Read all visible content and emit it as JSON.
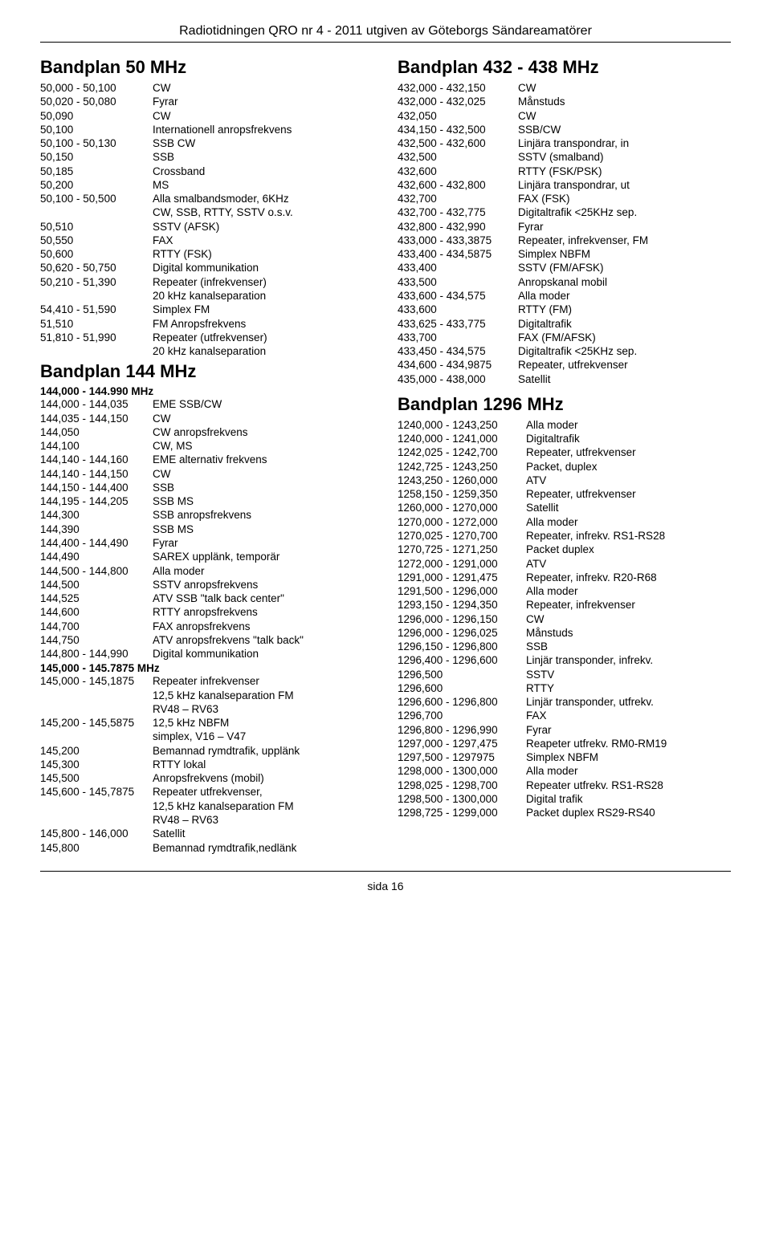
{
  "header": "Radiotidningen QRO nr 4 - 2011 utgiven av Göteborgs Sändareamatörer",
  "footer": "sida 16",
  "left": {
    "s50": {
      "title": "Bandplan 50 MHz",
      "rows": [
        [
          "50,000 - 50,100",
          "CW"
        ],
        [
          "50,020 - 50,080",
          "Fyrar"
        ],
        [
          "50,090",
          "CW"
        ],
        [
          "50,100",
          "Internationell anropsfrekvens"
        ],
        [
          "50,100 - 50,130",
          "SSB CW"
        ],
        [
          "50,150",
          "SSB"
        ],
        [
          "50,185",
          "Crossband"
        ],
        [
          "50,200",
          "MS"
        ],
        [
          "50,100 - 50,500",
          "Alla smalbandsmoder, 6KHz"
        ],
        [
          "",
          "CW, SSB, RTTY, SSTV o.s.v."
        ],
        [
          "50,510",
          "SSTV (AFSK)"
        ],
        [
          "50,550",
          "FAX"
        ],
        [
          "50,600",
          "RTTY (FSK)"
        ],
        [
          "50,620 - 50,750",
          "Digital kommunikation"
        ],
        [
          "50,210 - 51,390",
          "Repeater (infrekvenser)"
        ],
        [
          "",
          "20 kHz kanalseparation"
        ],
        [
          "54,410 - 51,590",
          "Simplex FM"
        ],
        [
          "51,510",
          "FM Anropsfrekvens"
        ],
        [
          "51,810 - 51,990",
          "Repeater (utfrekvenser)"
        ],
        [
          "",
          "20 kHz kanalseparation"
        ]
      ]
    },
    "s144": {
      "title": "Bandplan 144 MHz",
      "sub1": "144,000 - 144.990 MHz",
      "rows1": [
        [
          "144,000 - 144,035",
          "EME SSB/CW"
        ],
        [
          "144,035 - 144,150",
          "CW"
        ],
        [
          "144,050",
          "CW anropsfrekvens"
        ],
        [
          "144,100",
          "CW, MS"
        ],
        [
          "144,140 - 144,160",
          "EME alternativ frekvens"
        ],
        [
          "144,140 - 144,150",
          "CW"
        ],
        [
          "144,150 - 144,400",
          "SSB"
        ],
        [
          "144,195 - 144,205",
          "SSB MS"
        ],
        [
          "144,300",
          "SSB anropsfrekvens"
        ],
        [
          "144,390",
          "SSB MS"
        ],
        [
          "144,400 - 144,490",
          "Fyrar"
        ],
        [
          "144,490",
          "SAREX upplänk, temporär"
        ],
        [
          "144,500 - 144,800",
          "Alla moder"
        ],
        [
          "144,500",
          "SSTV anropsfrekvens"
        ],
        [
          "144,525",
          "ATV SSB \"talk back center\""
        ],
        [
          "144,600",
          "RTTY anropsfrekvens"
        ],
        [
          "144,700",
          "FAX anropsfrekvens"
        ],
        [
          "144,750",
          "ATV anropsfrekvens \"talk back\""
        ],
        [
          "144,800 - 144,990",
          "Digital kommunikation"
        ]
      ],
      "sub2": "145,000 - 145.7875 MHz",
      "rows2": [
        [
          "145,000 - 145,1875",
          "Repeater infrekvenser"
        ],
        [
          "",
          "12,5 kHz kanalseparation FM"
        ],
        [
          "",
          "RV48 – RV63"
        ],
        [
          "145,200 - 145,5875",
          "12,5 kHz NBFM"
        ],
        [
          "",
          "simplex, V16 – V47"
        ],
        [
          "145,200",
          "Bemannad rymdtrafik, upplänk"
        ],
        [
          "145,300",
          "RTTY lokal"
        ],
        [
          "145,500",
          "Anropsfrekvens (mobil)"
        ],
        [
          "145,600 - 145,7875",
          "Repeater utfrekvenser,"
        ],
        [
          "",
          "12,5 kHz kanalseparation FM"
        ],
        [
          "",
          "RV48 – RV63"
        ],
        [
          "145,800 - 146,000",
          "Satellit"
        ],
        [
          "145,800",
          "Bemannad rymdtrafik,nedlänk"
        ]
      ]
    }
  },
  "right": {
    "s432": {
      "title": "Bandplan 432 - 438 MHz",
      "rows": [
        [
          "432,000 - 432,150",
          "CW"
        ],
        [
          "432,000 - 432,025",
          "Månstuds"
        ],
        [
          "432,050",
          "CW"
        ],
        [
          "434,150 - 432,500",
          "SSB/CW"
        ],
        [
          "432,500 - 432,600",
          "Linjära transpondrar, in"
        ],
        [
          "432,500",
          "SSTV (smalband)"
        ],
        [
          "432,600",
          "RTTY (FSK/PSK)"
        ],
        [
          "432,600 - 432,800",
          "Linjära transpondrar, ut"
        ],
        [
          "432,700",
          "FAX (FSK)"
        ],
        [
          "432,700 - 432,775",
          "Digitaltrafik <25KHz sep."
        ],
        [
          "432,800 - 432,990",
          "Fyrar"
        ],
        [
          "433,000 - 433,3875",
          "Repeater, infrekvenser, FM"
        ],
        [
          "433,400 - 434,5875",
          "Simplex NBFM"
        ],
        [
          "433,400",
          "SSTV (FM/AFSK)"
        ],
        [
          "433,500",
          "Anropskanal mobil"
        ],
        [
          "433,600 - 434,575",
          "Alla moder"
        ],
        [
          "433,600",
          "RTTY (FM)"
        ],
        [
          "433,625 - 433,775",
          "Digitaltrafik"
        ],
        [
          "433,700",
          "FAX (FM/AFSK)"
        ],
        [
          "433,450 - 434,575",
          "Digitaltrafik <25KHz sep."
        ],
        [
          "434,600 - 434,9875",
          "Repeater, utfrekvenser"
        ],
        [
          "435,000 - 438,000",
          "Satellit"
        ]
      ]
    },
    "s1296": {
      "title": "Bandplan 1296 MHz",
      "rows": [
        [
          "1240,000 - 1243,250",
          "Alla moder"
        ],
        [
          "1240,000 - 1241,000",
          "Digitaltrafik"
        ],
        [
          "1242,025 - 1242,700",
          "Repeater, utfrekvenser"
        ],
        [
          "1242,725 - 1243,250",
          "Packet, duplex"
        ],
        [
          "1243,250 - 1260,000",
          "ATV"
        ],
        [
          "1258,150 - 1259,350",
          "Repeater, utfrekvenser"
        ],
        [
          "1260,000 - 1270,000",
          "Satellit"
        ],
        [
          "1270,000 - 1272,000",
          "Alla moder"
        ],
        [
          "1270,025 - 1270,700",
          "Repeater, infrekv. RS1-RS28"
        ],
        [
          "1270,725 - 1271,250",
          "Packet duplex"
        ],
        [
          "1272,000 - 1291,000",
          "ATV"
        ],
        [
          "1291,000 - 1291,475",
          "Repeater, infrekv. R20-R68"
        ],
        [
          "1291,500 - 1296,000",
          "Alla moder"
        ],
        [
          "1293,150 - 1294,350",
          "Repeater, infrekvenser"
        ],
        [
          "1296,000 - 1296,150",
          "CW"
        ],
        [
          "1296,000 - 1296,025",
          "Månstuds"
        ],
        [
          "1296,150 - 1296,800",
          "SSB"
        ],
        [
          "1296,400 - 1296,600",
          "Linjär transponder, infrekv."
        ],
        [
          "1296,500",
          "SSTV"
        ],
        [
          "1296,600",
          "RTTY"
        ],
        [
          "1296,600 - 1296,800",
          "Linjär transponder, utfrekv."
        ],
        [
          "1296,700",
          "FAX"
        ],
        [
          "1296,800 - 1296,990",
          "Fyrar"
        ],
        [
          "1297,000 - 1297,475",
          "Reapeter utfrekv. RM0-RM19"
        ],
        [
          "1297,500 - 1297975",
          "Simplex NBFM"
        ],
        [
          "1298,000 - 1300,000",
          "Alla moder"
        ],
        [
          "1298,025 - 1298,700",
          "Repeater utfrekv. RS1-RS28"
        ],
        [
          "1298,500 - 1300,000",
          "Digital trafik"
        ],
        [
          "1298,725 - 1299,000",
          "Packet duplex RS29-RS40"
        ]
      ]
    }
  }
}
